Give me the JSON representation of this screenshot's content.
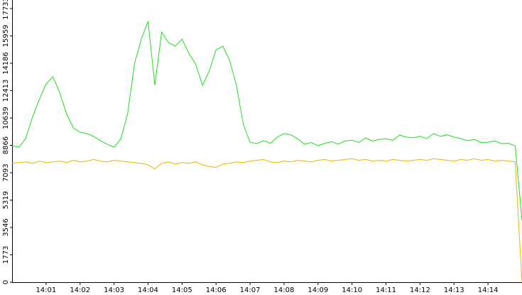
{
  "chart_data": {
    "type": "line",
    "x": [
      0,
      0.2,
      0.4,
      0.6,
      0.8,
      1,
      1.2,
      1.4,
      1.6,
      1.8,
      2,
      2.2,
      2.4,
      2.6,
      2.8,
      3,
      3.2,
      3.4,
      3.6,
      3.8,
      4,
      4.2,
      4.4,
      4.6,
      4.8,
      5,
      5.2,
      5.4,
      5.6,
      5.8,
      6,
      6.2,
      6.4,
      6.6,
      6.8,
      7,
      7.2,
      7.4,
      7.6,
      7.8,
      8,
      8.2,
      8.4,
      8.6,
      8.8,
      9,
      9.2,
      9.4,
      9.6,
      9.8,
      10,
      10.2,
      10.4,
      10.6,
      10.8,
      11,
      11.2,
      11.4,
      11.6,
      11.8,
      12,
      12.2,
      12.4,
      12.6,
      12.8,
      13,
      13.2,
      13.4,
      13.6,
      13.8,
      14,
      14.2,
      14.4,
      14.6,
      14.8,
      15
    ],
    "series": [
      {
        "color": "#22dd22",
        "values": [
          8840,
          8750,
          9300,
          10690,
          11840,
          12850,
          13310,
          12300,
          10920,
          10000,
          9720,
          9630,
          9440,
          9170,
          8940,
          8750,
          9300,
          10920,
          14140,
          15750,
          16900,
          12760,
          16210,
          15520,
          15290,
          15750,
          14830,
          14140,
          12760,
          13680,
          15060,
          15290,
          14370,
          12760,
          10230,
          9070,
          8980,
          9170,
          9000,
          9400,
          9630,
          9550,
          9300,
          8940,
          9050,
          8850,
          9000,
          9100,
          8950,
          9150,
          9200,
          9050,
          9350,
          9150,
          9250,
          9300,
          9200,
          9530,
          9400,
          9350,
          9450,
          9300,
          9630,
          9450,
          9550,
          9400,
          9300,
          9170,
          9250,
          9050,
          9070,
          9150,
          8980,
          9000,
          8840,
          4000
        ]
      },
      {
        "color": "#e6b800",
        "values": [
          7700,
          7750,
          7800,
          7700,
          7850,
          7750,
          7800,
          7850,
          7750,
          7900,
          7800,
          7850,
          7950,
          7850,
          7800,
          7900,
          7850,
          7800,
          7750,
          7700,
          7600,
          7350,
          7700,
          7800,
          7650,
          7750,
          7700,
          7800,
          7600,
          7500,
          7450,
          7650,
          7700,
          7800,
          7750,
          7850,
          7900,
          7950,
          7800,
          7750,
          7850,
          7800,
          7900,
          7850,
          7800,
          7900,
          7950,
          7850,
          7900,
          7950,
          8000,
          7900,
          7950,
          7850,
          7900,
          7850,
          7950,
          7900,
          7850,
          7900,
          7950,
          7900,
          8000,
          7950,
          7900,
          7850,
          7950,
          7900,
          8000,
          7900,
          7950,
          7850,
          7900,
          7850,
          7800,
          0
        ]
      }
    ],
    "xlim": [
      0,
      15
    ],
    "xticks": [
      {
        "value": 1,
        "label": "14:01"
      },
      {
        "value": 2,
        "label": "14:02"
      },
      {
        "value": 3,
        "label": "14:03"
      },
      {
        "value": 4,
        "label": "14:04"
      },
      {
        "value": 5,
        "label": "14:05"
      },
      {
        "value": 6,
        "label": "14:06"
      },
      {
        "value": 7,
        "label": "14:07"
      },
      {
        "value": 8,
        "label": "14:08"
      },
      {
        "value": 9,
        "label": "14:09"
      },
      {
        "value": 10,
        "label": "14:10"
      },
      {
        "value": 11,
        "label": "14:11"
      },
      {
        "value": 12,
        "label": "14:12"
      },
      {
        "value": 13,
        "label": "14:13"
      },
      {
        "value": 14,
        "label": "14:14"
      }
    ],
    "ylim": [
      0,
      17733
    ],
    "yticks": [
      0,
      1773,
      3546,
      5319,
      7093,
      8866,
      10639,
      12413,
      14186,
      15959,
      17733
    ],
    "grid": false
  }
}
